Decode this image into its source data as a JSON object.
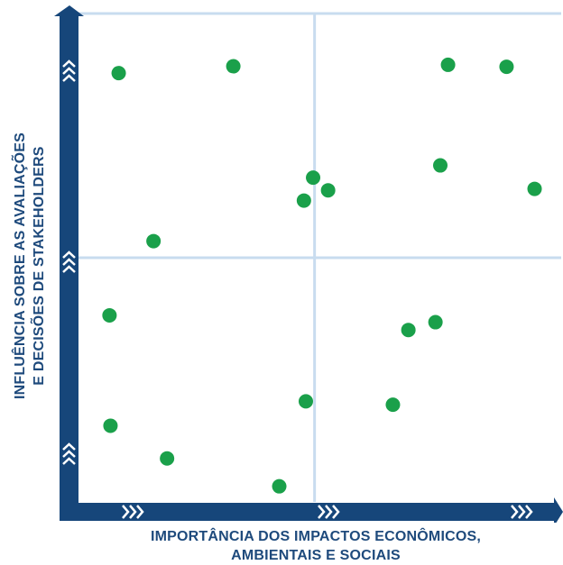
{
  "chart_data": {
    "type": "scatter",
    "xlabel_line1": "IMPORTÂNCIA DOS IMPACTOS ECONÔMICOS,",
    "xlabel_line2": "AMBIENTAIS E SOCIAIS",
    "ylabel_line1": "INFLUÊNCIA SOBRE AS AVALIAÇÕES",
    "ylabel_line2": "E DECISÕES DE STAKEHOLDERS",
    "xlim": [
      0,
      1
    ],
    "ylim": [
      0,
      1
    ],
    "grid": true,
    "point_color": "#1aa04a",
    "axis_color": "#16467a",
    "grid_color": "#c8dcef",
    "points": [
      {
        "x": 0.085,
        "y": 0.878
      },
      {
        "x": 0.322,
        "y": 0.892
      },
      {
        "x": 0.766,
        "y": 0.895
      },
      {
        "x": 0.887,
        "y": 0.891
      },
      {
        "x": 0.75,
        "y": 0.689
      },
      {
        "x": 0.945,
        "y": 0.641
      },
      {
        "x": 0.487,
        "y": 0.664
      },
      {
        "x": 0.518,
        "y": 0.638
      },
      {
        "x": 0.468,
        "y": 0.617
      },
      {
        "x": 0.157,
        "y": 0.534
      },
      {
        "x": 0.066,
        "y": 0.382
      },
      {
        "x": 0.74,
        "y": 0.368
      },
      {
        "x": 0.684,
        "y": 0.352
      },
      {
        "x": 0.472,
        "y": 0.206
      },
      {
        "x": 0.652,
        "y": 0.199
      },
      {
        "x": 0.068,
        "y": 0.156
      },
      {
        "x": 0.185,
        "y": 0.089
      },
      {
        "x": 0.417,
        "y": 0.032
      }
    ]
  }
}
